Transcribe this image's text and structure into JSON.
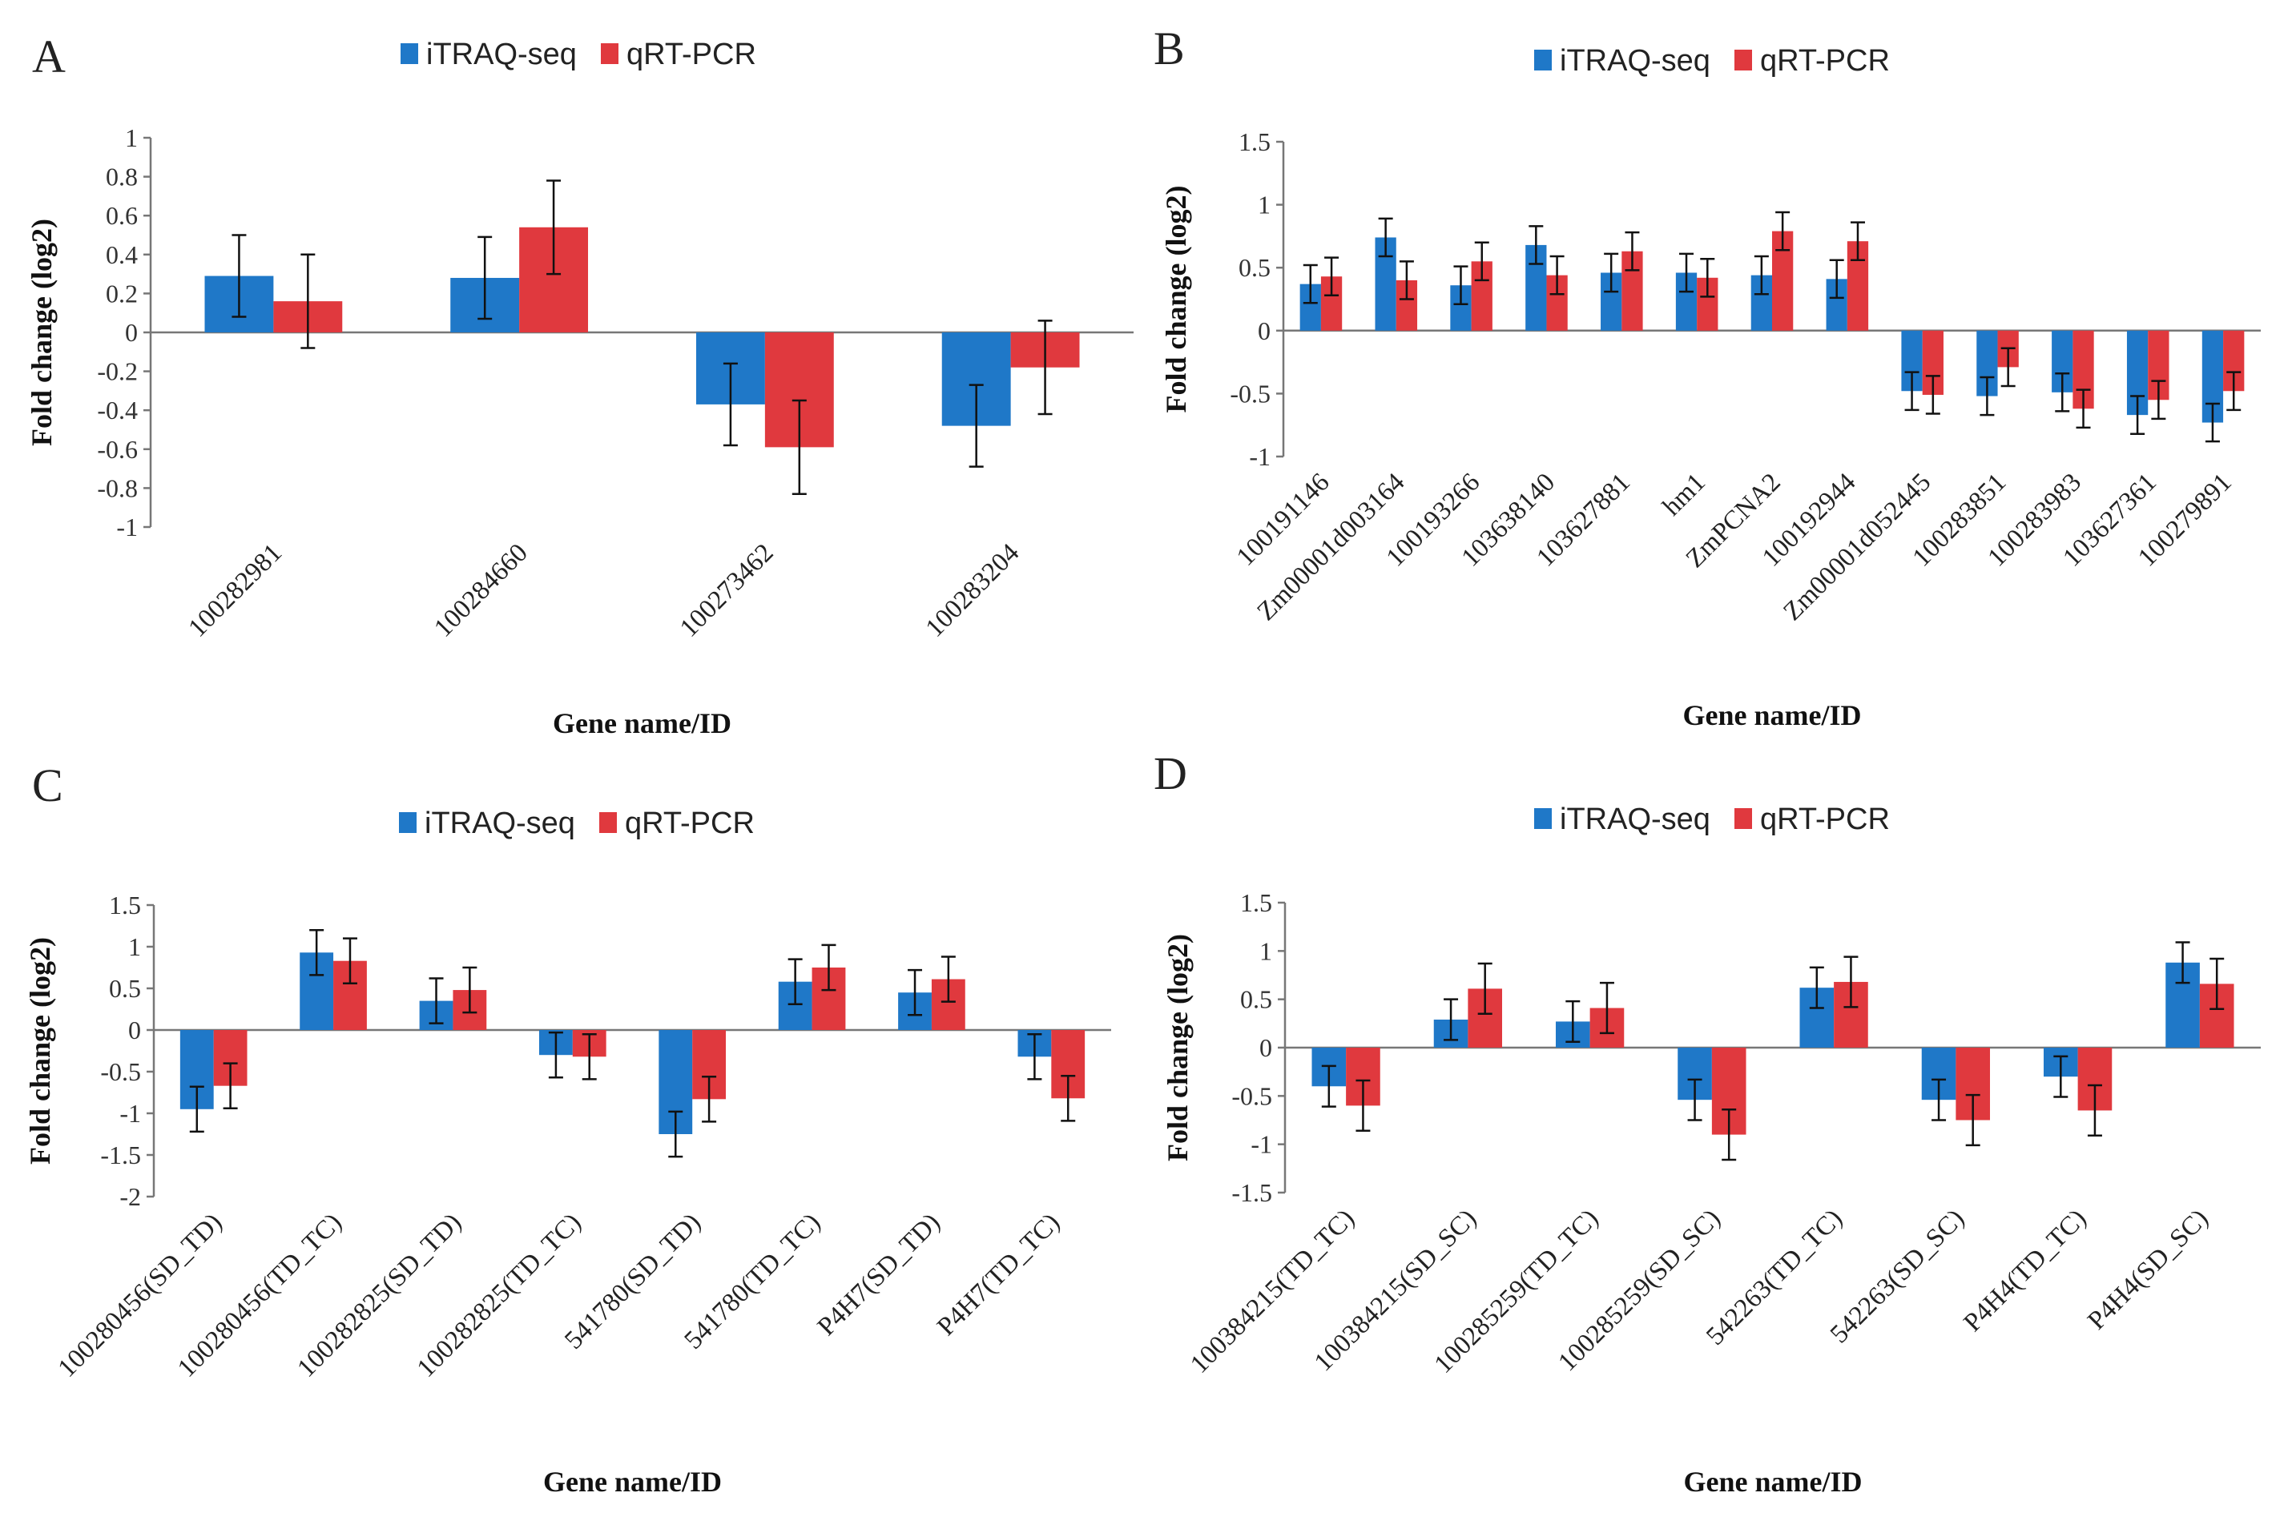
{
  "legend": {
    "series1": "iTRAQ-seq",
    "series2": "qRT-PCR"
  },
  "colors": {
    "series1": "#1f78c8",
    "series2": "#e0393e"
  },
  "chart_data": [
    {
      "panel": "A",
      "type": "bar",
      "xlabel": "Gene name/ID",
      "ylabel": "Fold change (log2)",
      "ylim": [
        -1,
        1
      ],
      "yticks": [
        1,
        0.8,
        0.6,
        0.4,
        0.2,
        0,
        -0.2,
        -0.4,
        -0.6,
        -0.8,
        -1
      ],
      "categories": [
        "100282981",
        "100284660",
        "100273462",
        "100283204"
      ],
      "series": [
        {
          "name": "iTRAQ-seq",
          "values": [
            0.29,
            0.28,
            -0.37,
            -0.48
          ],
          "errors": [
            0.21,
            0.21,
            0.21,
            0.21
          ]
        },
        {
          "name": "qRT-PCR",
          "values": [
            0.16,
            0.54,
            -0.59,
            -0.18
          ],
          "errors": [
            0.24,
            0.24,
            0.24,
            0.24
          ]
        }
      ]
    },
    {
      "panel": "B",
      "type": "bar",
      "xlabel": "Gene name/ID",
      "ylabel": "Fold change (log2)",
      "ylim": [
        -1,
        1.5
      ],
      "yticks": [
        1.5,
        1,
        0.5,
        0,
        -0.5,
        -1
      ],
      "categories": [
        "100191146",
        "Zm00001d003164",
        "100193266",
        "103638140",
        "103627881",
        "hm1",
        "ZmPCNA2",
        "100192944",
        "Zm00001d052445",
        "100283851",
        "100283983",
        "103627361",
        "100279891"
      ],
      "series": [
        {
          "name": "iTRAQ-seq",
          "values": [
            0.37,
            0.74,
            0.36,
            0.68,
            0.46,
            0.46,
            0.44,
            0.41,
            -0.48,
            -0.52,
            -0.49,
            -0.67,
            -0.73
          ],
          "errors": [
            0.15,
            0.15,
            0.15,
            0.15,
            0.15,
            0.15,
            0.15,
            0.15,
            0.15,
            0.15,
            0.15,
            0.15,
            0.15
          ]
        },
        {
          "name": "qRT-PCR",
          "values": [
            0.43,
            0.4,
            0.55,
            0.44,
            0.63,
            0.42,
            0.79,
            0.71,
            -0.51,
            -0.29,
            -0.62,
            -0.55,
            -0.48
          ],
          "errors": [
            0.15,
            0.15,
            0.15,
            0.15,
            0.15,
            0.15,
            0.15,
            0.15,
            0.15,
            0.15,
            0.15,
            0.15,
            0.15
          ]
        }
      ]
    },
    {
      "panel": "C",
      "type": "bar",
      "xlabel": "Gene name/ID",
      "ylabel": "Fold change (log2)",
      "ylim": [
        -2,
        1.5
      ],
      "yticks": [
        1.5,
        1,
        0.5,
        0,
        -0.5,
        -1,
        -1.5,
        -2
      ],
      "categories": [
        "100280456(SD_TD)",
        "100280456(TD_TC)",
        "100282825(SD_TD)",
        "100282825(TD_TC)",
        "541780(SD_TD)",
        "541780(TD_TC)",
        "P4H7(SD_TD)",
        "P4H7(TD_TC)"
      ],
      "series": [
        {
          "name": "iTRAQ-seq",
          "values": [
            -0.95,
            0.93,
            0.35,
            -0.3,
            -1.25,
            0.58,
            0.45,
            -0.32
          ],
          "errors": [
            0.27,
            0.27,
            0.27,
            0.27,
            0.27,
            0.27,
            0.27,
            0.27
          ]
        },
        {
          "name": "qRT-PCR",
          "values": [
            -0.67,
            0.83,
            0.48,
            -0.32,
            -0.83,
            0.75,
            0.61,
            -0.82
          ],
          "errors": [
            0.27,
            0.27,
            0.27,
            0.27,
            0.27,
            0.27,
            0.27,
            0.27
          ]
        }
      ]
    },
    {
      "panel": "D",
      "type": "bar",
      "xlabel": "Gene name/ID",
      "ylabel": "Fold change (log2)",
      "ylim": [
        -1.5,
        1.5
      ],
      "yticks": [
        1.5,
        1,
        0.5,
        0,
        -0.5,
        -1,
        -1.5
      ],
      "categories": [
        "100384215(TD_TC)",
        "100384215(SD_SC)",
        "100285259(TD_TC)",
        "100285259(SD_SC)",
        "542263(TD_TC)",
        "542263(SD_SC)",
        "P4H4(TD_TC)",
        "P4H4(SD_SC)"
      ],
      "series": [
        {
          "name": "iTRAQ-seq",
          "values": [
            -0.4,
            0.29,
            0.27,
            -0.54,
            0.62,
            -0.54,
            -0.3,
            0.88
          ],
          "errors": [
            0.21,
            0.21,
            0.21,
            0.21,
            0.21,
            0.21,
            0.21,
            0.21
          ]
        },
        {
          "name": "qRT-PCR",
          "values": [
            -0.6,
            0.61,
            0.41,
            -0.9,
            0.68,
            -0.75,
            -0.65,
            0.66
          ],
          "errors": [
            0.26,
            0.26,
            0.26,
            0.26,
            0.26,
            0.26,
            0.26,
            0.26
          ]
        }
      ]
    }
  ]
}
